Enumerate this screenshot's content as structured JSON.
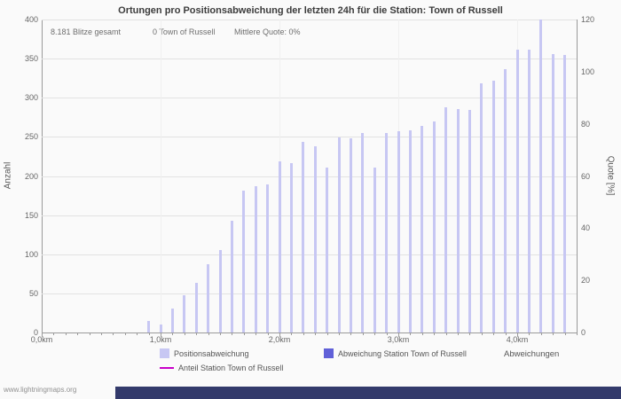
{
  "page": {
    "title": "Ortungen pro Positionsabweichung der letzten 24h für die Station: Town of Russell",
    "watermark": "www.lightningmaps.org"
  },
  "stats": {
    "total": "8.181 Blitze gesamt",
    "station": "0 Town of Russell",
    "mean_quote": "Mittlere Quote: 0%"
  },
  "axes": {
    "left_title": "Anzahl",
    "right_title": "Quote [%]",
    "x_title": "Abweichungen",
    "left_ticks": [
      0,
      50,
      100,
      150,
      200,
      250,
      300,
      350,
      400
    ],
    "right_ticks": [
      0,
      20,
      40,
      60,
      80,
      100,
      120
    ],
    "x_tick_labels": [
      "0,0km",
      "1,0km",
      "2,0km",
      "3,0km",
      "4,0km"
    ],
    "x_tick_km": [
      0,
      1,
      2,
      3,
      4
    ]
  },
  "legend": [
    {
      "label": "Positionsabweichung",
      "color": "#c7c7f3",
      "swatch": "box"
    },
    {
      "label": "Abweichung Station Town of Russell",
      "color": "#6060d8",
      "swatch": "box"
    },
    {
      "label": "Anteil Station Town of Russell",
      "color": "#c800c8",
      "swatch": "line"
    }
  ],
  "chart_data": {
    "type": "bar",
    "title": "Ortungen pro Positionsabweichung der letzten 24h für die Station: Town of Russell",
    "xlabel": "Abweichungen",
    "ylabel_left": "Anzahl",
    "ylabel_right": "Quote [%]",
    "x_range_km": [
      0,
      4.5
    ],
    "ylim_left": [
      0,
      400
    ],
    "ylim_right": [
      0,
      120
    ],
    "grid": true,
    "legend_position": "bottom",
    "bar_color": "#c7c7f3",
    "station_bar_color": "#6060d8",
    "quote_line_color": "#c800c8",
    "x_km": [
      0.9,
      1.0,
      1.1,
      1.2,
      1.3,
      1.4,
      1.5,
      1.6,
      1.7,
      1.8,
      1.9,
      2.0,
      2.1,
      2.2,
      2.3,
      2.4,
      2.5,
      2.6,
      2.7,
      2.8,
      2.9,
      3.0,
      3.1,
      3.2,
      3.3,
      3.4,
      3.5,
      3.6,
      3.7,
      3.8,
      3.9,
      4.0,
      4.1,
      4.2,
      4.3,
      4.4
    ],
    "series": [
      {
        "name": "Positionsabweichung",
        "values": [
          15,
          10,
          31,
          48,
          63,
          87,
          105,
          143,
          181,
          187,
          189,
          219,
          217,
          244,
          238,
          211,
          249,
          248,
          255,
          211,
          255,
          257,
          258,
          264,
          270,
          288,
          286,
          285,
          318,
          322,
          337,
          362,
          361,
          400,
          356,
          355
        ]
      },
      {
        "name": "Abweichung Station Town of Russell",
        "constant_value": 0
      },
      {
        "name": "Anteil Station Town of Russell (Quote %)",
        "constant_value": 0
      }
    ],
    "totals": {
      "blitze_gesamt": 8181,
      "station_blitze": 0,
      "mittlere_quote_percent": 0
    }
  }
}
